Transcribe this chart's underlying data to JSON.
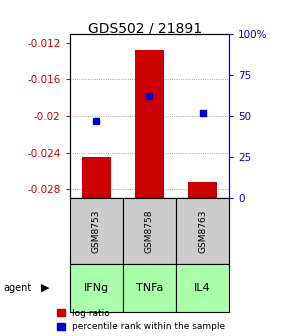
{
  "title": "GDS502 / 21891",
  "samples": [
    "GSM8753",
    "GSM8758",
    "GSM8763"
  ],
  "agents": [
    "IFNg",
    "TNFa",
    "IL4"
  ],
  "log_ratios": [
    -0.0245,
    -0.0128,
    -0.0272
  ],
  "percentile_ranks": [
    47,
    62,
    52
  ],
  "ylim_left": [
    -0.029,
    -0.011
  ],
  "ylim_right": [
    0,
    100
  ],
  "yticks_left": [
    -0.028,
    -0.024,
    -0.02,
    -0.016,
    -0.012
  ],
  "yticks_right": [
    0,
    25,
    50,
    75,
    100
  ],
  "ytick_labels_left": [
    "-0.028",
    "-0.024",
    "-0.02",
    "-0.016",
    "-0.012"
  ],
  "ytick_labels_right": [
    "0",
    "25",
    "50",
    "75",
    "100%"
  ],
  "bar_color": "#cc0000",
  "dot_color": "#0000cc",
  "sample_box_color": "#cccccc",
  "agent_box_color": "#aaffaa",
  "grid_color": "#888888",
  "title_fontsize": 10,
  "tick_fontsize": 7.5,
  "bar_width": 0.55,
  "legend_labels": [
    "log ratio",
    "percentile rank within the sample"
  ]
}
